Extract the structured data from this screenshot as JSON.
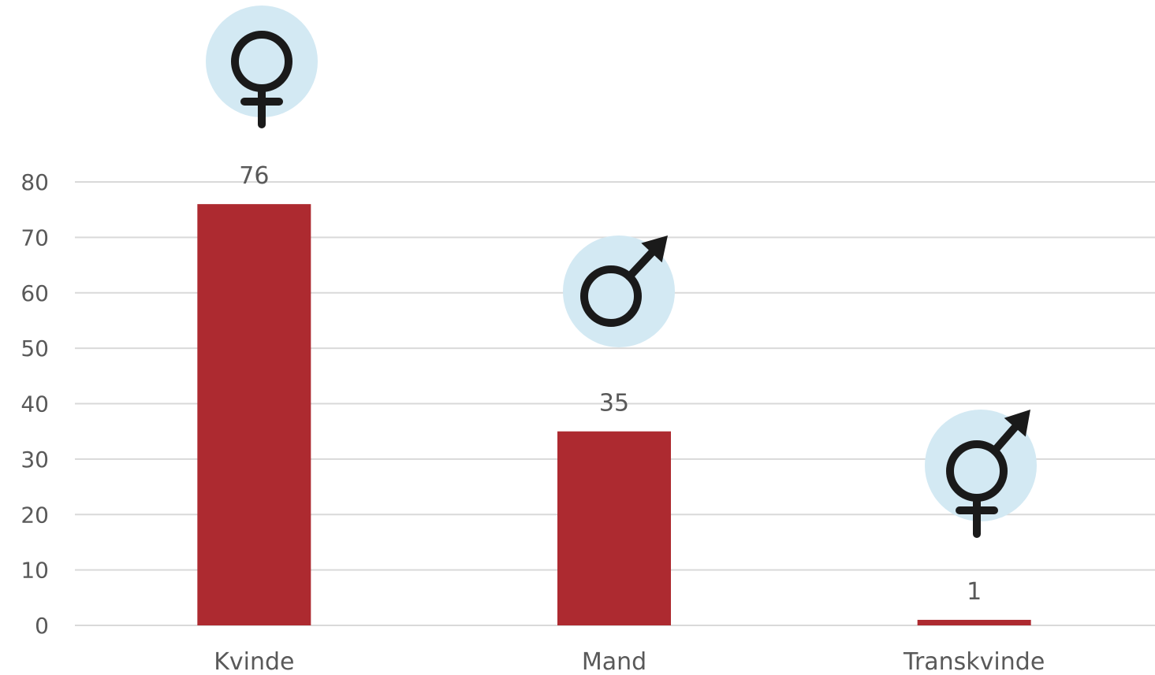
{
  "chart_data": {
    "type": "bar",
    "categories": [
      "Kvinde",
      "Mand",
      "Transkvinde"
    ],
    "values": [
      76,
      35,
      1
    ],
    "data_labels": [
      "76",
      "35",
      "1"
    ],
    "icons": [
      "female-symbol-icon",
      "male-symbol-icon",
      "transgender-symbol-icon"
    ],
    "ylim": [
      0,
      80
    ],
    "yticks": [
      0,
      10,
      20,
      30,
      40,
      50,
      60,
      70,
      80
    ],
    "ytick_labels": [
      "0",
      "10",
      "20",
      "30",
      "40",
      "50",
      "60",
      "70",
      "80"
    ],
    "title": "",
    "xlabel": "",
    "ylabel": "",
    "grid": true,
    "legend": "none",
    "colors": {
      "bar": "#ad2a30",
      "icon_circle": "#d3e9f3",
      "icon_stroke": "#1a1a1a",
      "grid": "#d9d9d9",
      "text": "#595959"
    }
  }
}
